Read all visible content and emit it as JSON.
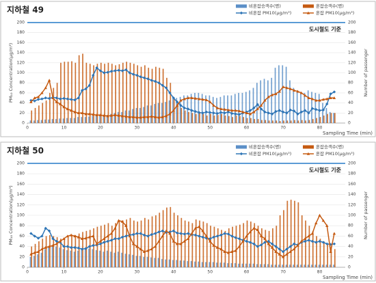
{
  "chart_data": [
    {
      "type": "combo",
      "title": "지하철 49",
      "xlabel": "Sampling Time (min)",
      "ylabel": "PM₁₀ Concentration(μg/m³)",
      "y2label": "Number of passenger",
      "x": [
        1,
        2,
        3,
        4,
        5,
        6,
        7,
        8,
        9,
        10,
        11,
        12,
        13,
        14,
        15,
        16,
        17,
        18,
        19,
        20,
        21,
        22,
        23,
        24,
        25,
        26,
        27,
        28,
        29,
        30,
        31,
        32,
        33,
        34,
        35,
        36,
        37,
        38,
        39,
        40,
        41,
        42,
        43,
        44,
        45,
        46,
        47,
        48,
        49,
        50,
        51,
        52,
        53,
        54,
        55,
        56,
        57,
        58,
        59,
        60,
        61,
        62,
        63,
        64,
        65,
        66,
        67,
        68,
        69,
        70,
        71,
        72,
        73,
        74,
        75,
        76,
        77,
        78,
        79,
        80,
        81,
        82,
        83,
        84
      ],
      "xlim": [
        0,
        87
      ],
      "xticks": [
        0,
        10,
        20,
        30,
        40,
        50,
        60,
        70,
        80
      ],
      "ylim": [
        0,
        200
      ],
      "yticks": [
        0,
        20,
        40,
        60,
        80,
        100,
        120,
        140,
        160,
        180,
        200
      ],
      "y2lim": [
        0,
        200
      ],
      "y2ticks": [
        0,
        20,
        40,
        60,
        80,
        100,
        120,
        140,
        160,
        180,
        200
      ],
      "grid": true,
      "reference": {
        "value": 200,
        "label": "도시철도 기준",
        "color": "#5b9bd5"
      },
      "series": [
        {
          "name": "비혼잡승객수(명)",
          "kind": "bar",
          "axis": "y2",
          "color": "#5b8fc7",
          "values": [
            5,
            5,
            6,
            6,
            7,
            7,
            8,
            8,
            9,
            9,
            10,
            10,
            10,
            12,
            12,
            12,
            13,
            14,
            14,
            15,
            15,
            16,
            18,
            20,
            22,
            22,
            25,
            25,
            28,
            30,
            30,
            32,
            35,
            35,
            38,
            40,
            40,
            42,
            45,
            48,
            50,
            52,
            55,
            55,
            58,
            60,
            60,
            58,
            55,
            55,
            52,
            50,
            52,
            55,
            55,
            55,
            58,
            60,
            60,
            62,
            65,
            70,
            80,
            85,
            88,
            85,
            90,
            110,
            115,
            115,
            112,
            85,
            70,
            65,
            62,
            60,
            65,
            62,
            60,
            58,
            40,
            30,
            22,
            20
          ]
        },
        {
          "name": "혼잡승객수(명)",
          "kind": "bar",
          "axis": "y2",
          "color": "#c55a11",
          "values": [
            25,
            30,
            35,
            40,
            45,
            60,
            70,
            80,
            120,
            122,
            122,
            123,
            120,
            135,
            138,
            120,
            118,
            115,
            118,
            120,
            118,
            120,
            118,
            115,
            117,
            120,
            122,
            120,
            118,
            115,
            112,
            115,
            110,
            108,
            112,
            110,
            108,
            90,
            80,
            50,
            40,
            30,
            25,
            22,
            20,
            18,
            20,
            18,
            15,
            18,
            15,
            16,
            18,
            15,
            14,
            12,
            15,
            14,
            12,
            10,
            10,
            8,
            8,
            6,
            6,
            5,
            5,
            5,
            4,
            5,
            5,
            5,
            6,
            5,
            6,
            5,
            6,
            8,
            10,
            12,
            15,
            18,
            20,
            20
          ]
        },
        {
          "name": "비혼잡 PM10(μg/m³)",
          "kind": "line",
          "color": "#2e75b6",
          "values": [
            45,
            44,
            47,
            48,
            50,
            49,
            51,
            50,
            48,
            49,
            48,
            47,
            46,
            50,
            65,
            68,
            75,
            95,
            110,
            104,
            100,
            101,
            103,
            104,
            105,
            104,
            106,
            100,
            97,
            95,
            92,
            90,
            88,
            85,
            83,
            80,
            75,
            70,
            60,
            50,
            42,
            35,
            30,
            28,
            25,
            23,
            21,
            20,
            22,
            21,
            20,
            19,
            21,
            20,
            22,
            19,
            18,
            17,
            20,
            22,
            25,
            30,
            37,
            28,
            22,
            20,
            18,
            23,
            25,
            22,
            20,
            26,
            24,
            18,
            22,
            25,
            20,
            29,
            27,
            25,
            26,
            38,
            58,
            62
          ]
        },
        {
          "name": "혼잡 PM10(μg/m³)",
          "kind": "line",
          "color": "#c55a11",
          "values": [
            42,
            50,
            52,
            60,
            70,
            85,
            50,
            42,
            38,
            32,
            28,
            25,
            22,
            20,
            20,
            18,
            18,
            17,
            16,
            16,
            15,
            14,
            15,
            16,
            15,
            14,
            13,
            12,
            12,
            11,
            11,
            12,
            12,
            13,
            12,
            11,
            12,
            14,
            18,
            25,
            35,
            45,
            48,
            50,
            50,
            49,
            48,
            47,
            46,
            42,
            35,
            30,
            28,
            27,
            26,
            25,
            25,
            24,
            22,
            20,
            18,
            22,
            28,
            35,
            45,
            52,
            56,
            58,
            63,
            72,
            70,
            68,
            65,
            63,
            60,
            55,
            50,
            48,
            45,
            45,
            47,
            48,
            50,
            50
          ]
        }
      ]
    },
    {
      "type": "combo",
      "title": "지하철 50",
      "xlabel": "Sampling Time (min)",
      "ylabel": "PM₁₀ Concentration(μg/m³)",
      "y2label": "Number of passenger",
      "x": [
        1,
        2,
        3,
        4,
        5,
        6,
        7,
        8,
        9,
        10,
        11,
        12,
        13,
        14,
        15,
        16,
        17,
        18,
        19,
        20,
        21,
        22,
        23,
        24,
        25,
        26,
        27,
        28,
        29,
        30,
        31,
        32,
        33,
        34,
        35,
        36,
        37,
        38,
        39,
        40,
        41,
        42,
        43,
        44,
        45,
        46,
        47,
        48,
        49,
        50,
        51,
        52,
        53,
        54,
        55,
        56,
        57,
        58,
        59,
        60,
        61,
        62,
        63,
        64,
        65,
        66,
        67,
        68,
        69,
        70,
        71,
        72,
        73,
        74,
        75,
        76,
        77,
        78,
        79,
        80,
        81,
        82,
        83,
        84
      ],
      "xlim": [
        0,
        87
      ],
      "xticks": [
        0,
        10,
        20,
        30,
        40,
        50,
        60,
        70,
        80
      ],
      "ylim": [
        0,
        200
      ],
      "yticks": [
        0,
        20,
        40,
        60,
        80,
        100,
        120,
        140,
        160,
        180,
        200
      ],
      "y2lim": [
        0,
        200
      ],
      "y2ticks": [
        0,
        20,
        40,
        60,
        80,
        100,
        120,
        140,
        160,
        180,
        200
      ],
      "grid": true,
      "reference": {
        "value": 200,
        "label": "도시철도 기준",
        "color": "#5b9bd5"
      },
      "series": [
        {
          "name": "비혼잡승객수(명)",
          "kind": "bar",
          "axis": "y2",
          "color": "#5b8fc7",
          "values": [
            20,
            22,
            25,
            28,
            35,
            40,
            42,
            40,
            38,
            35,
            33,
            32,
            30,
            32,
            35,
            38,
            36,
            35,
            33,
            32,
            30,
            32,
            30,
            28,
            30,
            28,
            26,
            25,
            24,
            22,
            22,
            20,
            20,
            19,
            18,
            18,
            16,
            15,
            15,
            14,
            14,
            13,
            13,
            12,
            12,
            11,
            11,
            10,
            10,
            10,
            10,
            9,
            9,
            9,
            8,
            8,
            8,
            7,
            7,
            7,
            7,
            7,
            6,
            6,
            6,
            6,
            5,
            5,
            5,
            5,
            5,
            5,
            5,
            5,
            5,
            5,
            5,
            5,
            5,
            5,
            5,
            5,
            5,
            5
          ]
        },
        {
          "name": "혼잡승객수(명)",
          "kind": "bar",
          "axis": "y2",
          "color": "#c55a11",
          "values": [
            40,
            45,
            50,
            55,
            60,
            62,
            60,
            58,
            55,
            55,
            58,
            60,
            62,
            65,
            68,
            70,
            72,
            75,
            78,
            80,
            82,
            85,
            80,
            85,
            88,
            90,
            92,
            95,
            90,
            88,
            90,
            95,
            92,
            98,
            100,
            105,
            110,
            115,
            116,
            105,
            100,
            95,
            90,
            88,
            85,
            92,
            90,
            88,
            85,
            80,
            78,
            75,
            72,
            70,
            75,
            78,
            80,
            82,
            85,
            90,
            88,
            85,
            80,
            75,
            72,
            70,
            75,
            80,
            100,
            110,
            128,
            130,
            128,
            125,
            100,
            90,
            80,
            70,
            60,
            55,
            50,
            45,
            40,
            35
          ]
        },
        {
          "name": "비혼잡 PM10(μg/m³)",
          "kind": "line",
          "color": "#2e75b6",
          "values": [
            65,
            60,
            56,
            60,
            75,
            70,
            55,
            50,
            48,
            40,
            40,
            38,
            38,
            37,
            35,
            36,
            40,
            42,
            43,
            45,
            48,
            50,
            52,
            55,
            55,
            58,
            60,
            62,
            63,
            65,
            65,
            62,
            60,
            63,
            65,
            68,
            70,
            67,
            68,
            70,
            66,
            65,
            64,
            65,
            63,
            62,
            60,
            58,
            56,
            55,
            58,
            60,
            62,
            65,
            64,
            60,
            57,
            55,
            52,
            50,
            48,
            45,
            40,
            43,
            48,
            50,
            45,
            40,
            35,
            30,
            35,
            40,
            45,
            43,
            48,
            50,
            52,
            50,
            48,
            50,
            48,
            45,
            44,
            45
          ]
        },
        {
          "name": "혼잡 PM10(μg/m³)",
          "kind": "line",
          "color": "#c55a11",
          "values": [
            25,
            28,
            30,
            35,
            38,
            40,
            42,
            45,
            50,
            55,
            60,
            62,
            60,
            58,
            55,
            56,
            58,
            60,
            45,
            50,
            55,
            60,
            65,
            75,
            90,
            88,
            80,
            60,
            45,
            40,
            35,
            30,
            32,
            35,
            40,
            50,
            60,
            70,
            65,
            50,
            45,
            45,
            50,
            55,
            65,
            75,
            78,
            70,
            60,
            50,
            42,
            38,
            35,
            30,
            28,
            30,
            32,
            40,
            50,
            60,
            68,
            75,
            72,
            60,
            55,
            45,
            38,
            30,
            25,
            20,
            25,
            30,
            35,
            42,
            50,
            55,
            60,
            65,
            85,
            100,
            90,
            80,
            30,
            65
          ]
        }
      ]
    }
  ]
}
